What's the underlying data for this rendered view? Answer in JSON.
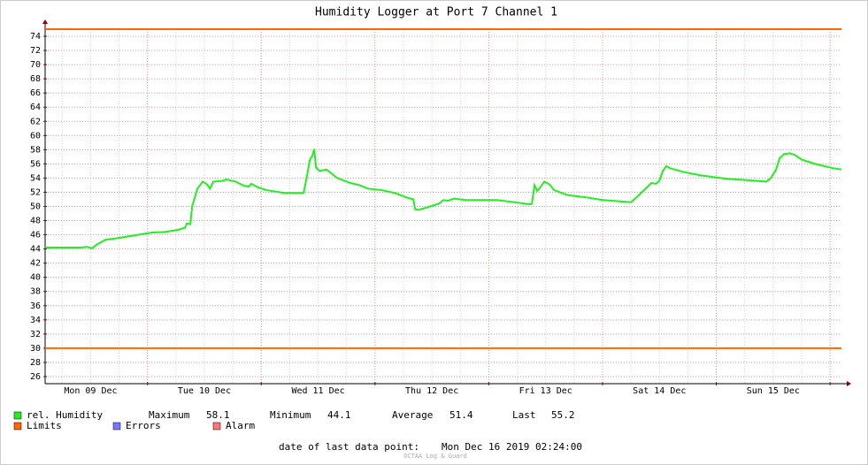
{
  "chart_data": {
    "type": "line",
    "title": "Humidity Logger at Port 7 Channel 1",
    "x": [
      "2019-12-09T02:24",
      "2019-12-09T09:54",
      "2019-12-09T11:12",
      "2019-12-09T12:19",
      "2019-12-09T13:15",
      "2019-12-09T15:07",
      "2019-12-09T17:22",
      "2019-12-09T21:06",
      "2019-12-10T00:50",
      "2019-12-10T03:38",
      "2019-12-10T06:26",
      "2019-12-10T07:55",
      "2019-12-10T08:18",
      "2019-12-10T09:02",
      "2019-12-10T09:25",
      "2019-12-10T10:32",
      "2019-12-10T11:39",
      "2019-12-10T12:35",
      "2019-12-10T13:09",
      "2019-12-10T13:54",
      "2019-12-10T15:46",
      "2019-12-10T16:42",
      "2019-12-10T18:34",
      "2019-12-10T20:26",
      "2019-12-10T21:22",
      "2019-12-10T21:55",
      "2019-12-10T23:14",
      "2019-12-11T01:06",
      "2019-12-11T04:50",
      "2019-12-11T08:56",
      "2019-12-11T09:30",
      "2019-12-11T10:14",
      "2019-12-11T10:48",
      "2019-12-11T11:10",
      "2019-12-11T11:33",
      "2019-12-11T12:18",
      "2019-12-11T13:47",
      "2019-12-11T16:02",
      "2019-12-11T18:50",
      "2019-12-11T20:42",
      "2019-12-11T22:34",
      "2019-12-12T01:22",
      "2019-12-12T04:10",
      "2019-12-12T06:58",
      "2019-12-12T08:05",
      "2019-12-12T08:27",
      "2019-12-12T09:12",
      "2019-12-12T11:38",
      "2019-12-12T13:30",
      "2019-12-12T14:26",
      "2019-12-12T15:22",
      "2019-12-12T16:40",
      "2019-12-12T19:06",
      "2019-12-13T01:38",
      "2019-12-13T05:22",
      "2019-12-13T08:43",
      "2019-12-13T09:06",
      "2019-12-13T09:39",
      "2019-12-13T10:13",
      "2019-12-13T10:46",
      "2019-12-13T11:42",
      "2019-12-13T12:50",
      "2019-12-13T13:46",
      "2019-12-13T16:34",
      "2019-12-13T20:18",
      "2019-12-14T00:02",
      "2019-12-14T06:00",
      "2019-12-14T07:30",
      "2019-12-14T09:22",
      "2019-12-14T10:18",
      "2019-12-14T11:14",
      "2019-12-14T11:58",
      "2019-12-14T12:43",
      "2019-12-14T13:28",
      "2019-12-14T14:13",
      "2019-12-14T16:50",
      "2019-12-14T20:34",
      "2019-12-15T02:10",
      "2019-12-15T06:50",
      "2019-12-15T10:34",
      "2019-12-15T11:30",
      "2019-12-15T12:37",
      "2019-12-15T13:22",
      "2019-12-15T14:18",
      "2019-12-15T15:36",
      "2019-12-15T16:43",
      "2019-12-15T18:02",
      "2019-12-15T20:50",
      "2019-12-16T00:34",
      "2019-12-16T02:24"
    ],
    "series": [
      {
        "name": "rel. Humidity",
        "color": "#22ee22",
        "values": [
          44.2,
          44.2,
          44.3,
          44.1,
          44.6,
          45.3,
          45.5,
          45.9,
          46.3,
          46.4,
          46.7,
          47.0,
          47.6,
          47.5,
          50.0,
          52.5,
          53.5,
          53.1,
          52.5,
          53.5,
          53.6,
          53.8,
          53.5,
          52.9,
          52.8,
          53.2,
          52.7,
          52.3,
          51.9,
          51.9,
          53.8,
          56.5,
          57.2,
          58.1,
          55.5,
          55.0,
          55.2,
          54.0,
          53.3,
          53.0,
          52.5,
          52.3,
          51.9,
          51.2,
          51.0,
          49.6,
          49.5,
          50.0,
          50.4,
          50.9,
          50.8,
          51.1,
          50.9,
          50.9,
          50.6,
          50.3,
          50.4,
          53.0,
          52.2,
          52.6,
          53.5,
          53.1,
          52.3,
          51.6,
          51.3,
          50.9,
          50.6,
          51.5,
          52.7,
          53.3,
          53.2,
          53.6,
          55.0,
          55.7,
          55.4,
          54.9,
          54.4,
          53.9,
          53.7,
          53.5,
          54.0,
          55.2,
          56.8,
          57.4,
          57.5,
          57.2,
          56.6,
          56.0,
          55.4,
          55.2
        ]
      }
    ],
    "limits": {
      "name": "Limits",
      "color": "#ff6600",
      "values": [
        75,
        30
      ]
    },
    "legend_extra": [
      {
        "name": "Errors",
        "color": "#7777ff"
      },
      {
        "name": "Alarm",
        "color": "#ff7777"
      }
    ],
    "stats": [
      {
        "label": "Maximum",
        "value": 58.1
      },
      {
        "label": "Minimum",
        "value": 44.1
      },
      {
        "label": "Average",
        "value": 51.4
      },
      {
        "label": "Last",
        "value": 55.2
      }
    ],
    "xlim": [
      "2019-12-09T02:24",
      "2019-12-16T02:24"
    ],
    "xticks": [
      {
        "value": "2019-12-09T12:00",
        "label": "Mon 09 Dec"
      },
      {
        "value": "2019-12-10T12:00",
        "label": "Tue 10 Dec"
      },
      {
        "value": "2019-12-11T12:00",
        "label": "Wed 11 Dec"
      },
      {
        "value": "2019-12-12T12:00",
        "label": "Thu 12 Dec"
      },
      {
        "value": "2019-12-13T12:00",
        "label": "Fri 13 Dec"
      },
      {
        "value": "2019-12-14T12:00",
        "label": "Sat 14 Dec"
      },
      {
        "value": "2019-12-15T12:00",
        "label": "Sun 15 Dec"
      }
    ],
    "xgrid": [
      "2019-12-10T00:00",
      "2019-12-11T00:00",
      "2019-12-12T00:00",
      "2019-12-13T00:00",
      "2019-12-14T00:00",
      "2019-12-15T00:00",
      "2019-12-16T00:00"
    ],
    "ylim": [
      25,
      75
    ],
    "yticks": [
      26,
      28,
      30,
      32,
      34,
      36,
      38,
      40,
      42,
      44,
      46,
      48,
      50,
      52,
      54,
      56,
      58,
      60,
      62,
      64,
      66,
      68,
      70,
      72,
      74
    ],
    "grid": true,
    "footer_label": "date of last data point:",
    "footer_value": "Mon Dec 16 2019 02:24:00",
    "watermark": "OCTAA Log & Guard"
  }
}
